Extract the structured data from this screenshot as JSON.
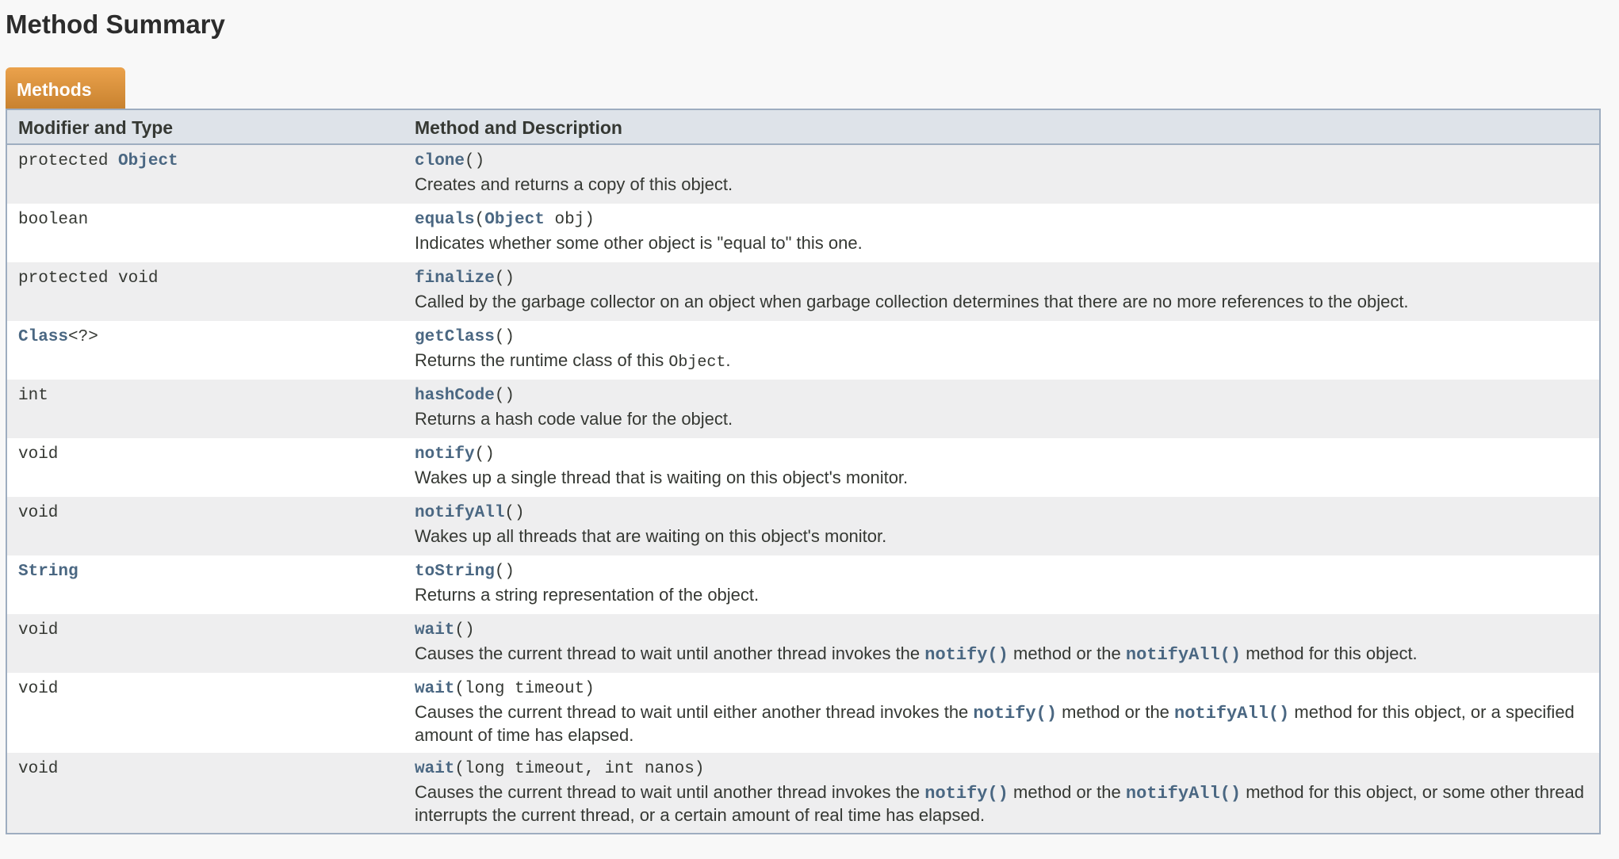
{
  "heading": "Method Summary",
  "tab_label": "Methods",
  "columns": [
    "Modifier and Type",
    "Method and Description"
  ],
  "colors": {
    "link": "#4a6782",
    "tab": "#dd8f3a",
    "header_bg": "#dee3e9",
    "border": "#9eadc0"
  },
  "rows": [
    {
      "type": [
        {
          "t": "protected "
        },
        {
          "t": "Object",
          "link": true
        }
      ],
      "sig": [
        {
          "t": "clone",
          "link": true
        },
        {
          "t": "()"
        }
      ],
      "desc": [
        {
          "t": "Creates and returns a copy of this object."
        }
      ]
    },
    {
      "type": [
        {
          "t": "boolean"
        }
      ],
      "sig": [
        {
          "t": "equals",
          "link": true
        },
        {
          "t": "("
        },
        {
          "t": "Object",
          "link": true
        },
        {
          "t": " obj)"
        }
      ],
      "desc": [
        {
          "t": "Indicates whether some other object is \"equal to\" this one."
        }
      ]
    },
    {
      "type": [
        {
          "t": "protected void"
        }
      ],
      "sig": [
        {
          "t": "finalize",
          "link": true
        },
        {
          "t": "()"
        }
      ],
      "desc": [
        {
          "t": "Called by the garbage collector on an object when garbage collection determines that there are no more references to the object."
        }
      ]
    },
    {
      "type": [
        {
          "t": "Class",
          "link": true
        },
        {
          "t": "<?>"
        }
      ],
      "sig": [
        {
          "t": "getClass",
          "link": true
        },
        {
          "t": "()"
        }
      ],
      "desc": [
        {
          "t": "Returns the runtime class of this "
        },
        {
          "t": "Object",
          "code": true
        },
        {
          "t": "."
        }
      ]
    },
    {
      "type": [
        {
          "t": "int"
        }
      ],
      "sig": [
        {
          "t": "hashCode",
          "link": true
        },
        {
          "t": "()"
        }
      ],
      "desc": [
        {
          "t": "Returns a hash code value for the object."
        }
      ]
    },
    {
      "type": [
        {
          "t": "void"
        }
      ],
      "sig": [
        {
          "t": "notify",
          "link": true
        },
        {
          "t": "()"
        }
      ],
      "desc": [
        {
          "t": "Wakes up a single thread that is waiting on this object's monitor."
        }
      ]
    },
    {
      "type": [
        {
          "t": "void"
        }
      ],
      "sig": [
        {
          "t": "notifyAll",
          "link": true
        },
        {
          "t": "()"
        }
      ],
      "desc": [
        {
          "t": "Wakes up all threads that are waiting on this object's monitor."
        }
      ]
    },
    {
      "type": [
        {
          "t": "String",
          "link": true
        }
      ],
      "sig": [
        {
          "t": "toString",
          "link": true
        },
        {
          "t": "()"
        }
      ],
      "desc": [
        {
          "t": "Returns a string representation of the object."
        }
      ]
    },
    {
      "type": [
        {
          "t": "void"
        }
      ],
      "sig": [
        {
          "t": "wait",
          "link": true
        },
        {
          "t": "()"
        }
      ],
      "desc": [
        {
          "t": "Causes the current thread to wait until another thread invokes the "
        },
        {
          "t": "notify()",
          "link": true
        },
        {
          "t": " method or the "
        },
        {
          "t": "notifyAll()",
          "link": true
        },
        {
          "t": " method for this object."
        }
      ]
    },
    {
      "type": [
        {
          "t": "void"
        }
      ],
      "sig": [
        {
          "t": "wait",
          "link": true
        },
        {
          "t": "(long timeout)"
        }
      ],
      "desc": [
        {
          "t": "Causes the current thread to wait until either another thread invokes the "
        },
        {
          "t": "notify()",
          "link": true
        },
        {
          "t": " method or the "
        },
        {
          "t": "notifyAll()",
          "link": true
        },
        {
          "t": " method for this object, or a specified amount of time has elapsed."
        }
      ]
    },
    {
      "type": [
        {
          "t": "void"
        }
      ],
      "sig": [
        {
          "t": "wait",
          "link": true
        },
        {
          "t": "(long timeout, int nanos)"
        }
      ],
      "desc": [
        {
          "t": "Causes the current thread to wait until another thread invokes the "
        },
        {
          "t": "notify()",
          "link": true
        },
        {
          "t": " method or the "
        },
        {
          "t": "notifyAll()",
          "link": true
        },
        {
          "t": " method for this object, or some other thread interrupts the current thread, or a certain amount of real time has elapsed."
        }
      ]
    }
  ]
}
